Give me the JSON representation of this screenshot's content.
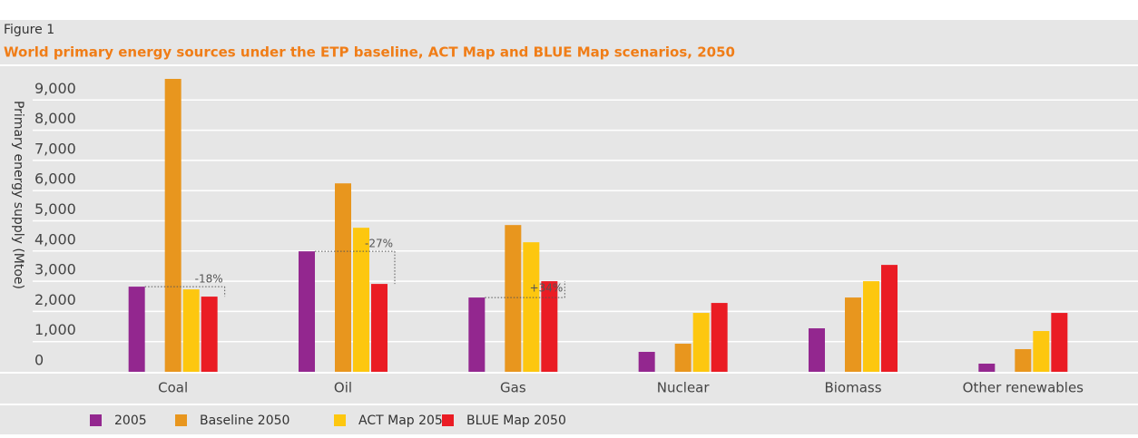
{
  "chart_data": {
    "type": "bar",
    "figure_label": "Figure 1",
    "title": "World primary energy sources under the ETP baseline, ACT Map and BLUE Map scenarios, 2050",
    "y_label": "Primary energy supply (Mtoe)",
    "categories": [
      "Coal",
      "Oil",
      "Gas",
      "Nuclear",
      "Biomass",
      "Other renewables"
    ],
    "series": [
      {
        "name": "2005",
        "color": "#93278f",
        "values": [
          2820,
          3990,
          2460,
          660,
          1440,
          270
        ]
      },
      {
        "name": "Baseline 2050",
        "color": "#e8961e",
        "values": [
          9700,
          6240,
          4860,
          930,
          2460,
          750
        ]
      },
      {
        "name": "ACT Map 2050",
        "color": "#fdc70f",
        "values": [
          2730,
          4770,
          4290,
          1950,
          3000,
          1350
        ]
      },
      {
        "name": "BLUE Map 2050",
        "color": "#ea1c24",
        "values": [
          2490,
          2910,
          3000,
          2280,
          3540,
          1950
        ]
      }
    ],
    "annotations": [
      "-18%",
      "-27%",
      "+34%"
    ],
    "ylim": [
      0,
      9700
    ],
    "yticks": [
      0,
      {
        "value": 1000,
        "label": "1,000"
      },
      {
        "value": 2000,
        "label": "2,000"
      },
      {
        "value": 3000,
        "label": "3,000"
      },
      {
        "value": 4000,
        "label": "4,000"
      },
      {
        "value": 5000,
        "label": "5,000"
      },
      {
        "value": 6000,
        "label": "6,000"
      },
      {
        "value": 7000,
        "label": "7,000"
      },
      {
        "value": 8000,
        "label": "8,000"
      },
      {
        "value": 9000,
        "label": "9,000"
      }
    ],
    "grid": true
  }
}
